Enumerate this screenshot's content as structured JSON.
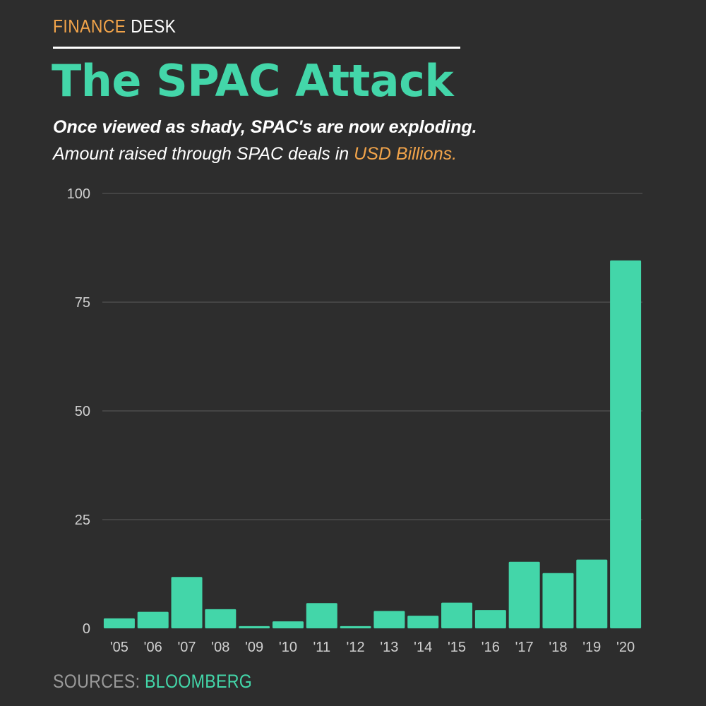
{
  "header": {
    "brand_part1": "FINANCE",
    "brand_part2": " DESK",
    "title": "The SPAC Attack",
    "subtitle_bold": "Once viewed as shady, SPAC's are now exploding.",
    "subtitle_prefix": "Amount raised through SPAC deals in ",
    "subtitle_highlight": "USD Billions."
  },
  "footer": {
    "source_label": "SOURCES: ",
    "source_name": "BLOOMBERG"
  },
  "colors": {
    "background": "#2d2d2d",
    "bar": "#43d6a9",
    "accent": "#f2a44a",
    "grid": "#5a5a5a",
    "tick_text": "#d0d0d0"
  },
  "chart_data": {
    "type": "bar",
    "categories": [
      "'05",
      "'06",
      "'07",
      "'08",
      "'09",
      "'10",
      "'11",
      "'12",
      "'13",
      "'14",
      "'15",
      "'16",
      "'17",
      "'18",
      "'19",
      "'20"
    ],
    "values": [
      2.3,
      3.8,
      11.8,
      4.4,
      0.5,
      1.6,
      5.8,
      0.5,
      4.0,
      2.9,
      5.9,
      4.2,
      15.3,
      12.7,
      15.8,
      84.6
    ],
    "title": "The SPAC Attack",
    "xlabel": "",
    "ylabel": "",
    "ylim": [
      0,
      100
    ],
    "yticks": [
      0,
      25,
      50,
      75,
      100
    ],
    "grid": true,
    "legend": "none"
  }
}
